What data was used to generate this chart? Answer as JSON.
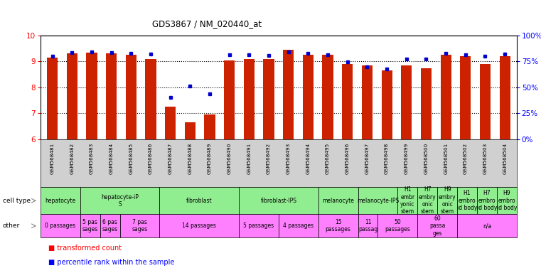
{
  "title": "GDS3867 / NM_020440_at",
  "samples": [
    "GSM568481",
    "GSM568482",
    "GSM568483",
    "GSM568484",
    "GSM568485",
    "GSM568486",
    "GSM568487",
    "GSM568488",
    "GSM568489",
    "GSM568490",
    "GSM568491",
    "GSM568492",
    "GSM568493",
    "GSM568494",
    "GSM568495",
    "GSM568496",
    "GSM568497",
    "GSM568498",
    "GSM568499",
    "GSM568500",
    "GSM568501",
    "GSM568502",
    "GSM568503",
    "GSM568504"
  ],
  "red_values": [
    9.15,
    9.3,
    9.35,
    9.3,
    9.25,
    9.1,
    7.25,
    6.65,
    6.95,
    9.05,
    9.1,
    9.1,
    9.45,
    9.25,
    9.25,
    8.9,
    8.85,
    8.65,
    8.85,
    8.75,
    9.25,
    9.2,
    8.9,
    9.2
  ],
  "blue_values": [
    9.2,
    9.35,
    9.38,
    9.35,
    9.32,
    9.28,
    7.6,
    8.05,
    7.75,
    9.25,
    9.25,
    9.22,
    9.38,
    9.3,
    9.25,
    8.98,
    8.78,
    8.7,
    9.08,
    9.08,
    9.3,
    9.25,
    9.2,
    9.28
  ],
  "ylim": [
    6,
    10
  ],
  "cell_groups": [
    {
      "label": "hepatocyte",
      "start": 0,
      "end": 1
    },
    {
      "label": "hepatocyte-iP\nS",
      "start": 2,
      "end": 5
    },
    {
      "label": "fibroblast",
      "start": 6,
      "end": 9
    },
    {
      "label": "fibroblast-IPS",
      "start": 10,
      "end": 13
    },
    {
      "label": "melanocyte",
      "start": 14,
      "end": 15
    },
    {
      "label": "melanocyte-IPS",
      "start": 16,
      "end": 17
    },
    {
      "label": "H1\nembr\nyonic\nstem",
      "start": 18,
      "end": 18
    },
    {
      "label": "H7\nembry\nonic\nstem",
      "start": 19,
      "end": 19
    },
    {
      "label": "H9\nembry\nonic\nstem",
      "start": 20,
      "end": 20
    },
    {
      "label": "H1\nembro\nid body",
      "start": 21,
      "end": 21
    },
    {
      "label": "H7\nembro\nid body",
      "start": 22,
      "end": 22
    },
    {
      "label": "H9\nembro\nid body",
      "start": 23,
      "end": 23
    }
  ],
  "other_groups": [
    {
      "label": "0 passages",
      "start": 0,
      "end": 1
    },
    {
      "label": "5 pas\nsages",
      "start": 2,
      "end": 2
    },
    {
      "label": "6 pas\nsages",
      "start": 3,
      "end": 3
    },
    {
      "label": "7 pas\nsages",
      "start": 4,
      "end": 5
    },
    {
      "label": "14 passages",
      "start": 6,
      "end": 9
    },
    {
      "label": "5 passages",
      "start": 10,
      "end": 11
    },
    {
      "label": "4 passages",
      "start": 12,
      "end": 13
    },
    {
      "label": "15\npassages",
      "start": 14,
      "end": 15
    },
    {
      "label": "11\npassag",
      "start": 16,
      "end": 16
    },
    {
      "label": "50\npassages",
      "start": 17,
      "end": 18
    },
    {
      "label": "60\npassa\nges",
      "start": 19,
      "end": 20
    },
    {
      "label": "n/a",
      "start": 21,
      "end": 23
    }
  ],
  "cell_color": "#90EE90",
  "other_color": "#FF80FF",
  "label_bg": "#D0D0D0",
  "bar_color": "#CC2200",
  "marker_color": "#0000CC"
}
